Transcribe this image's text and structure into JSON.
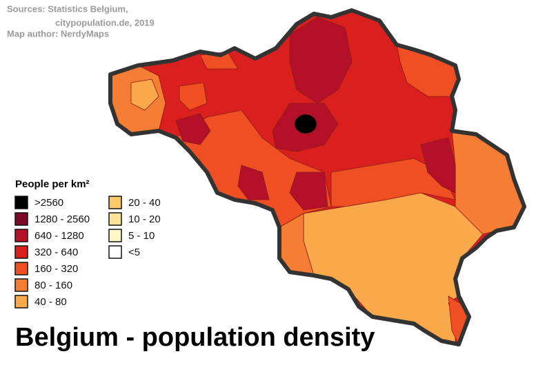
{
  "sources": {
    "line1": "Sources: Statistics Belgium,",
    "line2": "citypopulation.de, 2019",
    "author": "Map author: NerdyMaps"
  },
  "legend": {
    "title": "People per km²",
    "items": [
      {
        "label": ">2560",
        "color": "#000000"
      },
      {
        "label": "1280 - 2560",
        "color": "#7a0a25"
      },
      {
        "label": "640 - 1280",
        "color": "#b5102a"
      },
      {
        "label": "320 - 640",
        "color": "#d9201f"
      },
      {
        "label": "160 - 320",
        "color": "#f04e23"
      },
      {
        "label": "80 - 160",
        "color": "#f57d34"
      },
      {
        "label": "40 - 80",
        "color": "#f9a84a"
      },
      {
        "label": "20 - 40",
        "color": "#fcc86a"
      },
      {
        "label": "10 - 20",
        "color": "#fde29a"
      },
      {
        "label": "5 - 10",
        "color": "#fff7c8"
      },
      {
        "label": "<5",
        "color": "#ffffff"
      }
    ]
  },
  "title": "Belgium - population density"
}
